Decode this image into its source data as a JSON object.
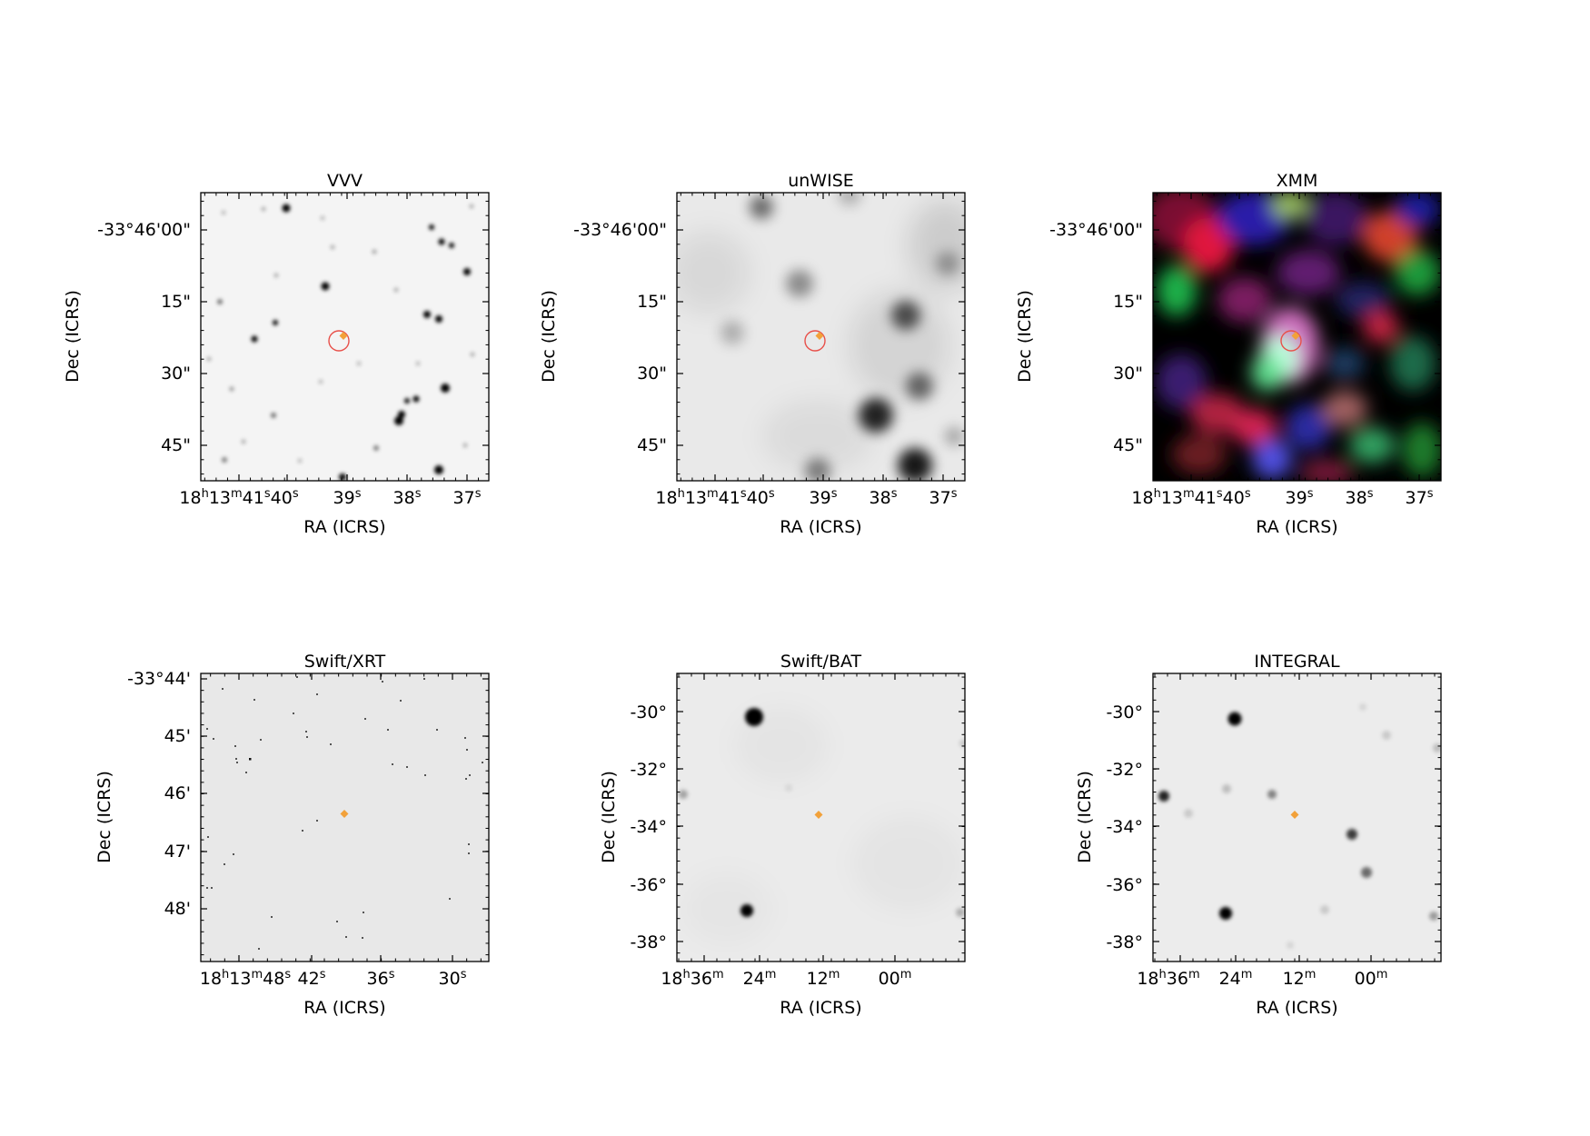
{
  "panels": [
    {
      "title": "VVV",
      "xlabel": "RA (ICRS)",
      "ylabel": "Dec (ICRS)",
      "xticks": [
        {
          "text": "18h13m41s40s",
          "parts": [
            [
              "18",
              "n"
            ],
            [
              "h",
              "s"
            ],
            [
              "13",
              "n"
            ],
            [
              "m",
              "s"
            ],
            [
              "41",
              "n"
            ],
            [
              "s",
              "s"
            ],
            [
              "40",
              "n"
            ],
            [
              "s",
              "s"
            ]
          ]
        },
        {
          "text": "39s",
          "parts": [
            [
              "39",
              "n"
            ],
            [
              "s",
              "s"
            ]
          ]
        },
        {
          "text": "38s",
          "parts": [
            [
              "38",
              "n"
            ],
            [
              "s",
              "s"
            ]
          ]
        },
        {
          "text": "37s",
          "parts": [
            [
              "37",
              "n"
            ],
            [
              "s",
              "s"
            ]
          ]
        }
      ],
      "yticks": [
        "-33°46'00\"",
        "15\"",
        "30\"",
        "45\""
      ],
      "background": "#f4f4f4",
      "circle": true
    },
    {
      "title": "unWISE",
      "xlabel": "RA (ICRS)",
      "ylabel": "Dec (ICRS)",
      "xticks": [
        {
          "text": "18h13m41s40s",
          "parts": [
            [
              "18",
              "n"
            ],
            [
              "h",
              "s"
            ],
            [
              "13",
              "n"
            ],
            [
              "m",
              "s"
            ],
            [
              "41",
              "n"
            ],
            [
              "s",
              "s"
            ],
            [
              "40",
              "n"
            ],
            [
              "s",
              "s"
            ]
          ]
        },
        {
          "text": "39s",
          "parts": [
            [
              "39",
              "n"
            ],
            [
              "s",
              "s"
            ]
          ]
        },
        {
          "text": "38s",
          "parts": [
            [
              "38",
              "n"
            ],
            [
              "s",
              "s"
            ]
          ]
        },
        {
          "text": "37s",
          "parts": [
            [
              "37",
              "n"
            ],
            [
              "s",
              "s"
            ]
          ]
        }
      ],
      "yticks": [
        "-33°46'00\"",
        "15\"",
        "30\"",
        "45\""
      ],
      "background": "#e9e9e9",
      "circle": true
    },
    {
      "title": "XMM",
      "xlabel": "RA (ICRS)",
      "ylabel": "Dec (ICRS)",
      "xticks": [
        {
          "text": "18h13m41s40s",
          "parts": [
            [
              "18",
              "n"
            ],
            [
              "h",
              "s"
            ],
            [
              "13",
              "n"
            ],
            [
              "m",
              "s"
            ],
            [
              "41",
              "n"
            ],
            [
              "s",
              "s"
            ],
            [
              "40",
              "n"
            ],
            [
              "s",
              "s"
            ]
          ]
        },
        {
          "text": "39s",
          "parts": [
            [
              "39",
              "n"
            ],
            [
              "s",
              "s"
            ]
          ]
        },
        {
          "text": "38s",
          "parts": [
            [
              "38",
              "n"
            ],
            [
              "s",
              "s"
            ]
          ]
        },
        {
          "text": "37s",
          "parts": [
            [
              "37",
              "n"
            ],
            [
              "s",
              "s"
            ]
          ]
        }
      ],
      "yticks": [
        "-33°46'00\"",
        "15\"",
        "30\"",
        "45\""
      ],
      "background": "#000000",
      "circle": true
    },
    {
      "title": "Swift/XRT",
      "xlabel": "RA (ICRS)",
      "ylabel": "Dec (ICRS)",
      "xticks": [
        {
          "text": "18h13m48s",
          "parts": [
            [
              "18",
              "n"
            ],
            [
              "h",
              "s"
            ],
            [
              "13",
              "n"
            ],
            [
              "m",
              "s"
            ],
            [
              "48",
              "n"
            ],
            [
              "s",
              "s"
            ]
          ]
        },
        {
          "text": "42s",
          "parts": [
            [
              "42",
              "n"
            ],
            [
              "s",
              "s"
            ]
          ]
        },
        {
          "text": "36s",
          "parts": [
            [
              "36",
              "n"
            ],
            [
              "s",
              "s"
            ]
          ]
        },
        {
          "text": "30s",
          "parts": [
            [
              "30",
              "n"
            ],
            [
              "s",
              "s"
            ]
          ]
        }
      ],
      "yticks": [
        "-33°44'",
        "45'",
        "46'",
        "47'",
        "48'"
      ],
      "background": "#e8e8e8",
      "circle": false
    },
    {
      "title": "Swift/BAT",
      "xlabel": "RA (ICRS)",
      "ylabel": "Dec (ICRS)",
      "xticks": [
        {
          "text": "18h36m",
          "parts": [
            [
              "18",
              "n"
            ],
            [
              "h",
              "s"
            ],
            [
              "36",
              "n"
            ],
            [
              "m",
              "s"
            ]
          ]
        },
        {
          "text": "24m",
          "parts": [
            [
              "24",
              "n"
            ],
            [
              "m",
              "s"
            ]
          ]
        },
        {
          "text": "12m",
          "parts": [
            [
              "12",
              "n"
            ],
            [
              "m",
              "s"
            ]
          ]
        },
        {
          "text": "00m",
          "parts": [
            [
              "00",
              "n"
            ],
            [
              "m",
              "s"
            ]
          ]
        }
      ],
      "yticks": [
        "-30°",
        "-32°",
        "-34°",
        "-36°",
        "-38°"
      ],
      "background": "#ebebeb",
      "circle": false
    },
    {
      "title": "INTEGRAL",
      "xlabel": "RA (ICRS)",
      "ylabel": "Dec (ICRS)",
      "xticks": [
        {
          "text": "18h36m",
          "parts": [
            [
              "18",
              "n"
            ],
            [
              "h",
              "s"
            ],
            [
              "36",
              "n"
            ],
            [
              "m",
              "s"
            ]
          ]
        },
        {
          "text": "24m",
          "parts": [
            [
              "24",
              "n"
            ],
            [
              "m",
              "s"
            ]
          ]
        },
        {
          "text": "12m",
          "parts": [
            [
              "12",
              "n"
            ],
            [
              "m",
              "s"
            ]
          ]
        },
        {
          "text": "00m",
          "parts": [
            [
              "00",
              "n"
            ],
            [
              "m",
              "s"
            ]
          ]
        }
      ],
      "yticks": [
        "-30°",
        "-32°",
        "-34°",
        "-36°",
        "-38°"
      ],
      "background": "#ececec",
      "circle": false
    }
  ],
  "colors": {
    "circle": "#e8504a",
    "marker": "#f2a13a"
  }
}
